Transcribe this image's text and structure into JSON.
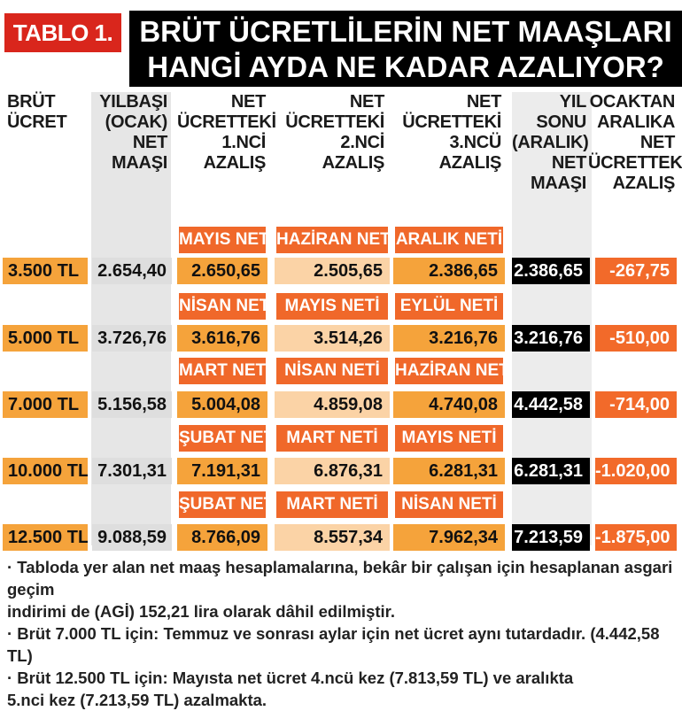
{
  "tag": "TABLO 1.",
  "title": {
    "line1": "BRÜT ÜCRETLİLERİN NET MAAŞLARI",
    "line2": "HANGİ AYDA NE KADAR AZALIYOR? (TL)"
  },
  "headers": [
    [
      "BRÜT",
      "ÜCRET"
    ],
    [
      "YILBAŞI",
      "(OCAK)",
      "NET",
      "MAAŞI"
    ],
    [
      "NET",
      "ÜCRETTEKİ",
      "1.NCİ",
      "AZALIŞ"
    ],
    [
      "NET",
      "ÜCRETTEKİ",
      "2.NCİ",
      "AZALIŞ"
    ],
    [
      "NET",
      "ÜCRETTEKİ",
      "3.NCÜ",
      "AZALIŞ"
    ],
    [
      "YIL",
      "SONU",
      "(ARALIK)",
      "NET",
      "MAAŞI"
    ],
    [
      "OCAKTAN",
      "ARALIKA",
      "NET",
      "ÜCRETTEKİ",
      "AZALIŞ"
    ]
  ],
  "rows": [
    {
      "labels": [
        "MAYIS NETİ",
        "HAZİRAN NETİ",
        "ARALIK NETİ"
      ],
      "gross": "3.500 TL",
      "jan": "2.654,40",
      "d1": "2.650,65",
      "d2": "2.505,65",
      "d3": "2.386,65",
      "dec": "2.386,65",
      "total": "-267,75"
    },
    {
      "labels": [
        "NİSAN NETİ",
        "MAYIS NETİ",
        "EYLÜL NETİ"
      ],
      "gross": "5.000 TL",
      "jan": "3.726,76",
      "d1": "3.616,76",
      "d2": "3.514,26",
      "d3": "3.216,76",
      "dec": "3.216,76",
      "total": "-510,00"
    },
    {
      "labels": [
        "MART NETİ",
        "NİSAN NETİ",
        "HAZİRAN NETİ"
      ],
      "gross": "7.000 TL",
      "jan": "5.156,58",
      "d1": "5.004,08",
      "d2": "4.859,08",
      "d3": "4.740,08",
      "dec": "4.442,58",
      "total": "-714,00"
    },
    {
      "labels": [
        "ŞUBAT NETİ",
        "MART NETİ",
        "MAYIS NETİ"
      ],
      "gross": "10.000 TL",
      "jan": "7.301,31",
      "d1": "7.191,31",
      "d2": "6.876,31",
      "d3": "6.281,31",
      "dec": "6.281,31",
      "total": "-1.020,00"
    },
    {
      "labels": [
        "ŞUBAT NETİ",
        "MART NETİ",
        "NİSAN NETİ"
      ],
      "gross": "12.500 TL",
      "jan": "9.088,59",
      "d1": "8.766,09",
      "d2": "8.557,34",
      "d3": "7.962,34",
      "dec": "7.213,59",
      "total": "-1.875,00"
    }
  ],
  "notes": [
    "· Tabloda yer alan net maaş hesaplamalarına, bekâr bir çalışan için hesaplanan asgari geçim",
    "indirimi de (AGİ) 152,21 lira olarak dâhil edilmiştir.",
    "· Brüt 7.000 TL için: Temmuz ve sonrası aylar için net  ücret aynı tutardadır. (4.442,58 TL)",
    "· Brüt 12.500 TL için: Mayısta net ücret 4.ncü kez  (7.813,59 TL) ve aralıkta",
    "5.nci kez (7.213,59 TL)  azalmakta."
  ],
  "colors": {
    "tag_red": "#d9261c",
    "label_orange": "#f0682a",
    "cell_orange": "#f5a33b",
    "cell_peach": "#fbd3a6",
    "total_red": "#f26a2a",
    "gray": "#dedede"
  }
}
